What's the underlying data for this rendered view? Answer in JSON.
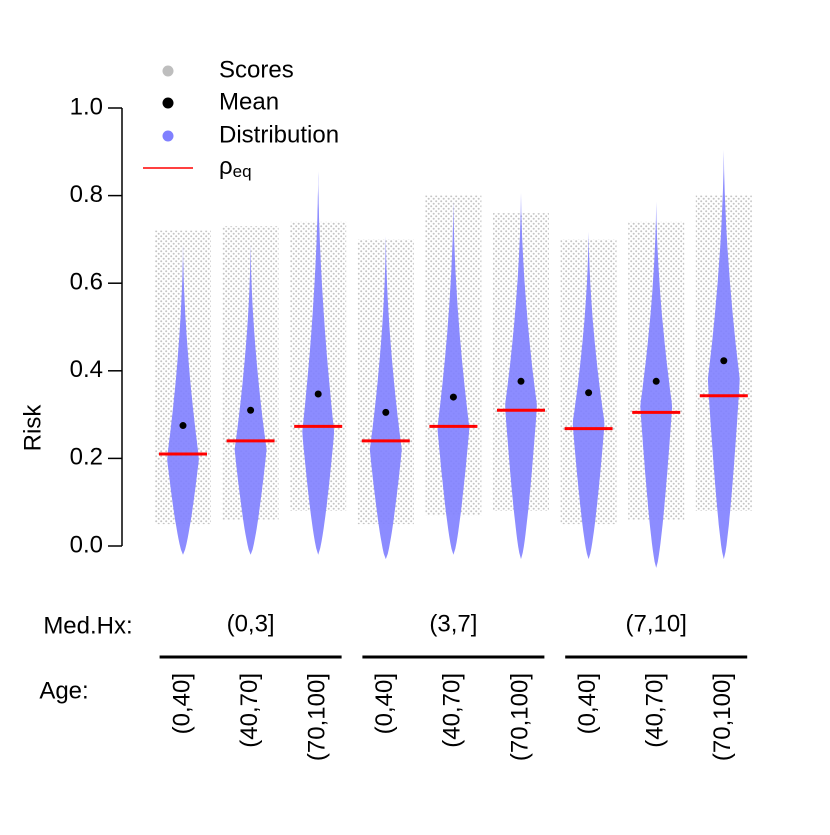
{
  "chart_data": {
    "type": "violin",
    "y_label": "Risk",
    "ylim": [
      0,
      1
    ],
    "yticks": [
      {
        "value": 0,
        "label": "0.0"
      },
      {
        "value": 0.2,
        "label": "0.2"
      },
      {
        "value": 0.4,
        "label": "0.4"
      },
      {
        "value": 0.6,
        "label": "0.6"
      },
      {
        "value": 0.8,
        "label": "0.8"
      },
      {
        "value": 1,
        "label": "1.0"
      }
    ],
    "factors": [
      {
        "label": "Med.Hx:",
        "levels": [
          "(0,3]",
          "(3,7]",
          "(7,10]"
        ]
      },
      {
        "label": "Age:",
        "levels": [
          "(0,40]",
          "(40,70]",
          "(70,100]"
        ]
      }
    ],
    "scores": {
      "name": "Scores",
      "color": "#bebebe",
      "min": [
        0.05,
        0.06,
        0.08,
        0.05,
        0.07,
        0.08,
        0.05,
        0.06,
        0.08
      ],
      "max": [
        0.72,
        0.73,
        0.74,
        0.7,
        0.8,
        0.76,
        0.7,
        0.74,
        0.8
      ]
    },
    "distribution": {
      "name": "Distribution",
      "color": "#8080ff",
      "min": [
        -0.02,
        -0.02,
        -0.02,
        -0.03,
        -0.02,
        -0.03,
        -0.03,
        -0.05,
        -0.03
      ],
      "mode": [
        0.2,
        0.22,
        0.26,
        0.22,
        0.27,
        0.32,
        0.28,
        0.32,
        0.38
      ],
      "max": [
        0.7,
        0.7,
        0.87,
        0.72,
        0.8,
        0.82,
        0.73,
        0.8,
        0.92
      ]
    },
    "mean": {
      "name": "Mean",
      "color": "#000000",
      "values": [
        0.275,
        0.31,
        0.347,
        0.305,
        0.34,
        0.376,
        0.35,
        0.376,
        0.423
      ]
    },
    "rho_eq": {
      "name": "ρ",
      "subscript": "eq",
      "color": "#ff0000",
      "values": [
        0.21,
        0.24,
        0.273,
        0.24,
        0.273,
        0.31,
        0.268,
        0.305,
        0.343
      ]
    }
  }
}
